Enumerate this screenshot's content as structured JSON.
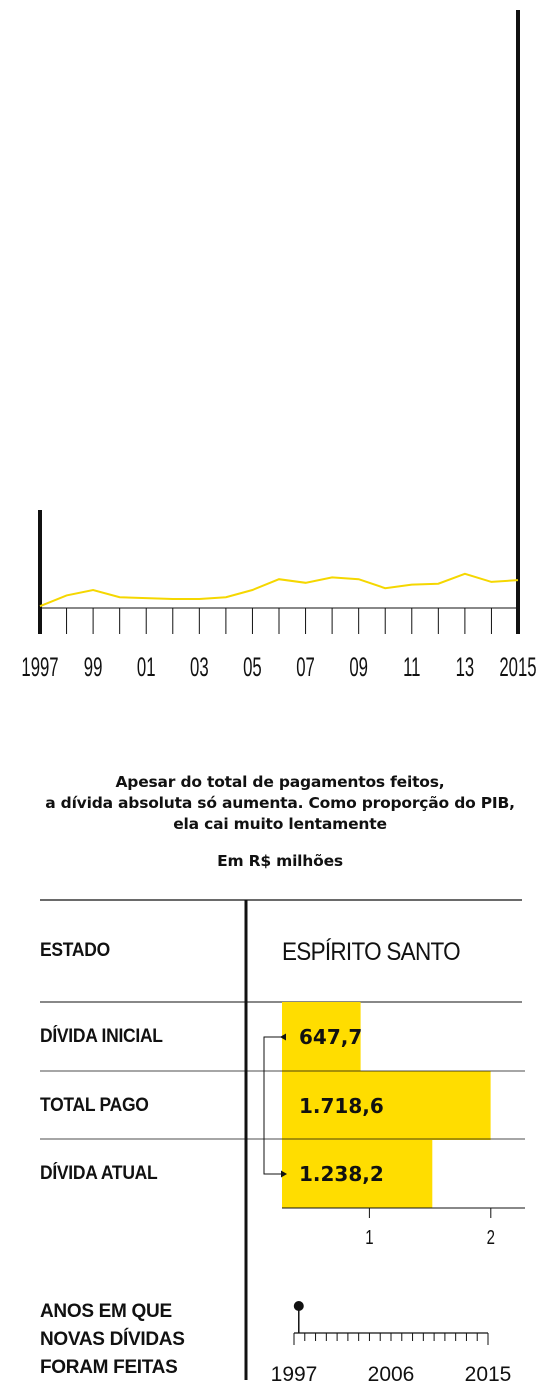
{
  "chart_data": [
    {
      "type": "line",
      "x": [
        1997,
        1998,
        1999,
        2000,
        2001,
        2002,
        2003,
        2004,
        2005,
        2006,
        2007,
        2008,
        2009,
        2010,
        2011,
        2012,
        2013,
        2014,
        2015
      ],
      "series": [
        {
          "values": [
            0.1,
            0.7,
            1.0,
            0.6,
            0.55,
            0.5,
            0.5,
            0.6,
            1.0,
            1.6,
            1.4,
            1.7,
            1.6,
            1.1,
            1.3,
            1.35,
            1.9,
            1.45,
            1.55
          ]
        }
      ],
      "x_tick_labels": [
        "1997",
        "99",
        "01",
        "03",
        "05",
        "07",
        "09",
        "11",
        "13",
        "2015"
      ],
      "line_color": "#f5d700",
      "grid": false
    },
    {
      "type": "bar",
      "orientation": "horizontal",
      "categories": [
        "DÍVIDA INICIAL",
        "TOTAL PAGO",
        "DÍVIDA ATUAL"
      ],
      "values": [
        647.7,
        1718.6,
        1238.2
      ],
      "value_labels": [
        "647,7",
        "1.718,6",
        "1.238,2"
      ],
      "xlim": [
        0,
        2300
      ],
      "x_ticks": [
        1000,
        2000
      ],
      "x_tick_labels": [
        "1",
        "2"
      ],
      "bar_color": "#ffdd00"
    }
  ],
  "caption": {
    "lines": [
      "Apesar do total de pagamentos feitos,",
      "a dívida absoluta só aumenta. Como proporção do PIB,",
      "ela cai muito lentamente"
    ],
    "unit": "Em R$ milhões"
  },
  "table": {
    "header_label": "ESTADO",
    "state_name": "ESPÍRITO SANTO",
    "years_label_lines": [
      "ANOS EM QUE",
      "NOVAS DÍVIDAS",
      "FORAM FEITAS"
    ]
  },
  "timeline": {
    "start_year": 1997,
    "end_year": 2015,
    "tick_labels": [
      "1997",
      "2006",
      "2015"
    ],
    "new_debt_years": [
      1998
    ]
  }
}
